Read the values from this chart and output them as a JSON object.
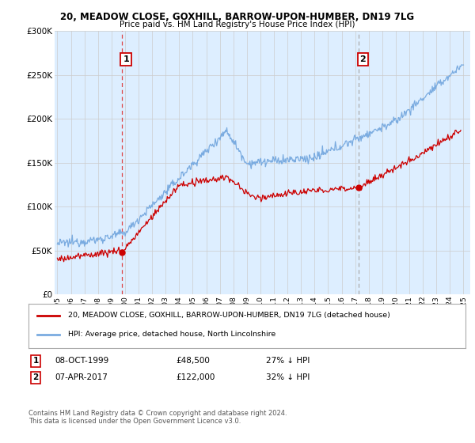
{
  "title": "20, MEADOW CLOSE, GOXHILL, BARROW-UPON-HUMBER, DN19 7LG",
  "subtitle": "Price paid vs. HM Land Registry's House Price Index (HPI)",
  "legend_line1": "20, MEADOW CLOSE, GOXHILL, BARROW-UPON-HUMBER, DN19 7LG (detached house)",
  "legend_line2": "HPI: Average price, detached house, North Lincolnshire",
  "annotation1": [
    "1",
    "08-OCT-1999",
    "£48,500",
    "27% ↓ HPI"
  ],
  "annotation2": [
    "2",
    "07-APR-2017",
    "£122,000",
    "32% ↓ HPI"
  ],
  "footer": "Contains HM Land Registry data © Crown copyright and database right 2024.\nThis data is licensed under the Open Government Licence v3.0.",
  "sale1_x": 1999.77,
  "sale1_y": 48500,
  "sale2_x": 2017.27,
  "sale2_y": 122000,
  "hpi_color": "#7aabe0",
  "hpi_fill_color": "#ddeeff",
  "price_color": "#cc0000",
  "sale_marker_color": "#cc0000",
  "vline1_color": "#dd4444",
  "vline2_color": "#aaaaaa",
  "grid_color": "#cccccc",
  "bg_color": "#ffffff",
  "plot_bg_color": "#ddeeff",
  "ylim": [
    0,
    300000
  ],
  "xlim_start": 1994.8,
  "xlim_end": 2025.5,
  "yticks": [
    0,
    50000,
    100000,
    150000,
    200000,
    250000,
    300000
  ]
}
